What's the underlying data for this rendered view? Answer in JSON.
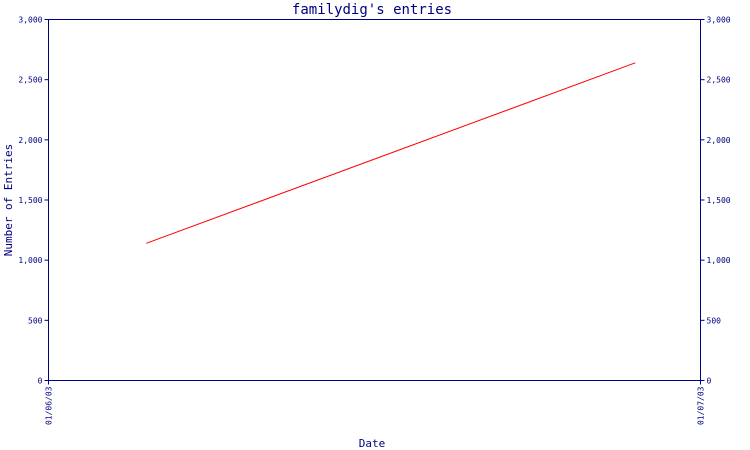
{
  "chart_data": {
    "type": "line",
    "title": "familydig's entries",
    "xlabel": "Date",
    "ylabel": "Number of Entries",
    "x_ticks": [
      "01/06/03",
      "01/07/03"
    ],
    "x_range": [
      "01/06/03",
      "01/07/03"
    ],
    "ylim": [
      0,
      3000
    ],
    "y_ticks": [
      0,
      500,
      1000,
      1500,
      2000,
      2500,
      3000
    ],
    "y_tick_labels": [
      "0",
      "500",
      "1,000",
      "1,500",
      "2,000",
      "2,500",
      "3,000"
    ],
    "series": [
      {
        "x": [
          "01/06/03",
          "01/07/03"
        ],
        "values": [
          1140,
          2640
        ],
        "color": "#ff0000",
        "start_fraction_of_range": 0.15,
        "end_fraction_of_range": 0.9
      }
    ],
    "axis_color": "#000080",
    "text_color": "#000080",
    "grid": false,
    "legend": "none",
    "mirrored_y_axis": "right"
  }
}
